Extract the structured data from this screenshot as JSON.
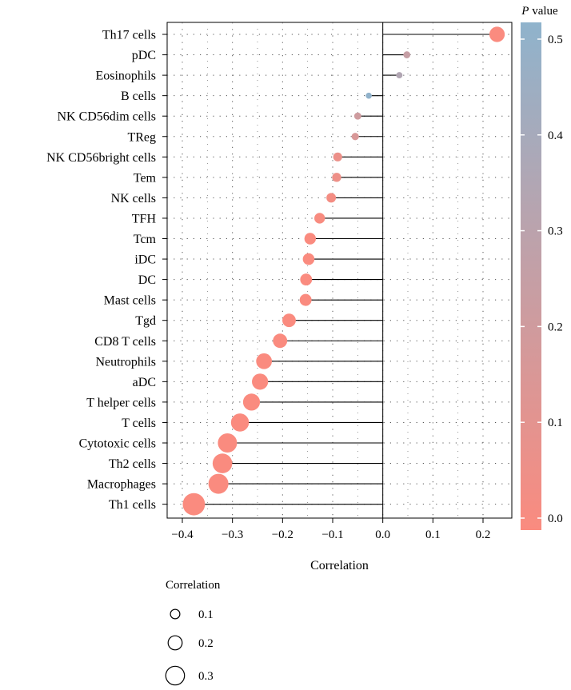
{
  "chart_data": {
    "type": "scatter",
    "subtype": "lollipop",
    "xlabel": "Correlation",
    "xlim": [
      -0.4,
      0.25
    ],
    "xticks": [
      -0.4,
      -0.3,
      -0.2,
      -0.1,
      0.0,
      0.1,
      0.2
    ],
    "xtick_labels": [
      "−0.4",
      "−0.3",
      "−0.2",
      "−0.1",
      "0.0",
      "0.1",
      "0.2"
    ],
    "grid": true,
    "points": [
      {
        "label": "Th17 cells",
        "x": 0.228,
        "p": 0.0
      },
      {
        "label": "pDC",
        "x": 0.048,
        "p": 0.26
      },
      {
        "label": "Eosinophils",
        "x": 0.033,
        "p": 0.36
      },
      {
        "label": "B cells",
        "x": -0.028,
        "p": 0.52
      },
      {
        "label": "NK CD56dim cells",
        "x": -0.05,
        "p": 0.22
      },
      {
        "label": "TReg",
        "x": -0.055,
        "p": 0.17
      },
      {
        "label": "NK CD56bright cells",
        "x": -0.09,
        "p": 0.07
      },
      {
        "label": "Tem",
        "x": -0.092,
        "p": 0.06
      },
      {
        "label": "NK cells",
        "x": -0.103,
        "p": 0.03
      },
      {
        "label": "TFH",
        "x": -0.126,
        "p": 0.01
      },
      {
        "label": "Tcm",
        "x": -0.145,
        "p": 0.0
      },
      {
        "label": "iDC",
        "x": -0.148,
        "p": 0.0
      },
      {
        "label": "DC",
        "x": -0.153,
        "p": 0.0
      },
      {
        "label": "Mast cells",
        "x": -0.154,
        "p": 0.0
      },
      {
        "label": "Tgd",
        "x": -0.187,
        "p": 0.0
      },
      {
        "label": "CD8 T cells",
        "x": -0.205,
        "p": 0.0
      },
      {
        "label": "Neutrophils",
        "x": -0.237,
        "p": 0.0
      },
      {
        "label": "aDC",
        "x": -0.245,
        "p": 0.0
      },
      {
        "label": "T helper cells",
        "x": -0.262,
        "p": 0.0
      },
      {
        "label": "T cells",
        "x": -0.285,
        "p": 0.0
      },
      {
        "label": "Cytotoxic cells",
        "x": -0.31,
        "p": 0.0
      },
      {
        "label": "Th2 cells",
        "x": -0.32,
        "p": 0.0
      },
      {
        "label": "Macrophages",
        "x": -0.328,
        "p": 0.0
      },
      {
        "label": "Th1 cells",
        "x": -0.377,
        "p": 0.0
      }
    ],
    "color_legend": {
      "title_italic": "P",
      "title_rest": " value",
      "ticks": [
        0.0,
        0.1,
        0.2,
        0.3,
        0.4,
        0.5
      ],
      "tick_labels": [
        "0.0",
        "0.1",
        "0.2",
        "0.3",
        "0.4",
        "0.5"
      ],
      "range": [
        0.0,
        0.53
      ],
      "color_low": "#fa8b7f",
      "color_high": "#8fb3cc"
    },
    "size_legend": {
      "title": "Correlation",
      "entries": [
        {
          "label": "0.1",
          "value": 0.1
        },
        {
          "label": "0.2",
          "value": 0.2
        },
        {
          "label": "0.3",
          "value": 0.3
        }
      ]
    }
  }
}
